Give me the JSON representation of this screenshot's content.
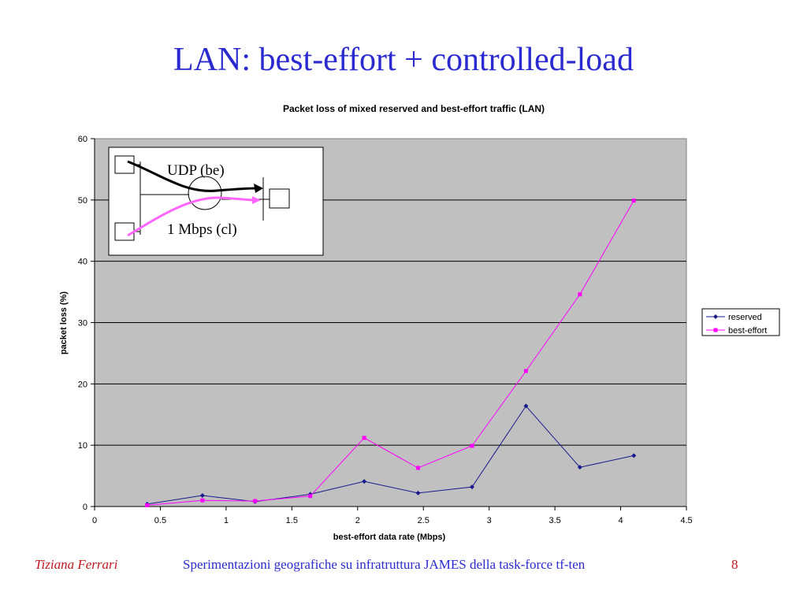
{
  "slide": {
    "title": "LAN: best-effort + controlled-load",
    "footer": {
      "author": "Tiziana Ferrari",
      "center": "Sperimentazioni geografiche su infratruttura JAMES della task-force tf-ten",
      "page": "8"
    }
  },
  "chart_data": {
    "type": "line",
    "title": "Packet loss of mixed reserved and best-effort traffic (LAN)",
    "xlabel": "best-effort data rate (Mbps)",
    "ylabel": "packet loss (%)",
    "xlim": [
      0,
      4.5
    ],
    "ylim": [
      0,
      60
    ],
    "xticks": [
      0,
      0.5,
      1,
      1.5,
      2,
      2.5,
      3,
      3.5,
      4,
      4.5
    ],
    "xtick_labels": [
      "0",
      "0.5",
      "1",
      "1.5",
      "2",
      "2.5",
      "3",
      "3.5",
      "4",
      "4.5"
    ],
    "yticks": [
      0,
      10,
      20,
      30,
      40,
      50,
      60
    ],
    "ytick_labels": [
      "0",
      "10",
      "20",
      "30",
      "40",
      "50",
      "60"
    ],
    "grid": "horizontal",
    "legend_position": "right",
    "plot_background": "#c0c0c0",
    "series": [
      {
        "name": "reserved",
        "color": "#1a1a8c",
        "marker": "diamond",
        "points": [
          [
            0.4,
            0.4
          ],
          [
            0.82,
            1.8
          ],
          [
            1.22,
            0.8
          ],
          [
            1.64,
            2.0
          ],
          [
            2.05,
            4.1
          ],
          [
            2.46,
            2.2
          ],
          [
            2.87,
            3.2
          ],
          [
            3.28,
            16.4
          ],
          [
            3.69,
            6.4
          ],
          [
            4.1,
            8.3
          ]
        ]
      },
      {
        "name": "best-effort",
        "color": "#ff00ff",
        "marker": "square",
        "points": [
          [
            0.4,
            0.2
          ],
          [
            0.82,
            1.0
          ],
          [
            1.22,
            0.9
          ],
          [
            1.64,
            1.7
          ],
          [
            2.05,
            11.2
          ],
          [
            2.46,
            6.3
          ],
          [
            2.87,
            9.9
          ],
          [
            3.28,
            22.1
          ],
          [
            3.69,
            34.6
          ],
          [
            4.1,
            49.9
          ]
        ]
      }
    ],
    "inset": {
      "label_top": "UDP (be)",
      "label_bottom": "1 Mbps (cl)",
      "top_arrow_color": "#000000",
      "bottom_arrow_color": "#ff66ff"
    }
  }
}
